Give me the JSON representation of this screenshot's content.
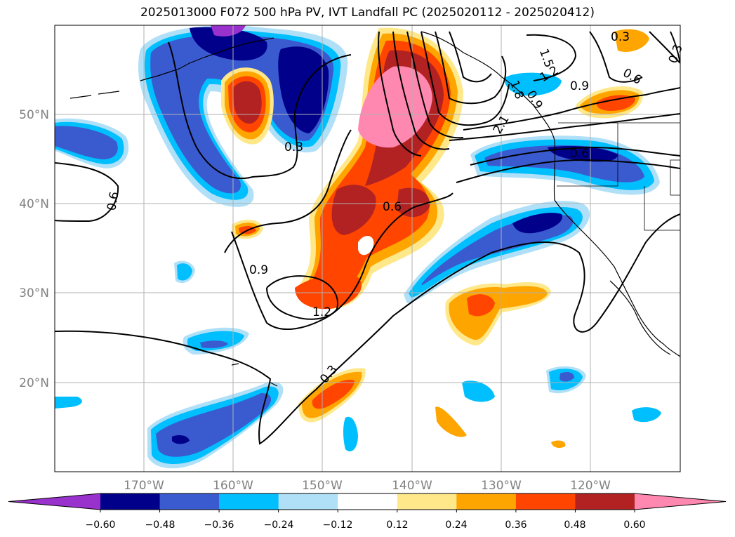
{
  "title": "2025013000 F072 500 hPa PV, IVT Landfall PC (2025020112 - 2025020412)",
  "map": {
    "lat_labels": [
      "50°N",
      "40°N",
      "30°N",
      "20°N"
    ],
    "lon_labels": [
      "170°W",
      "160°W",
      "150°W",
      "140°W",
      "130°W",
      "120°W"
    ],
    "contour_labels": [
      "0.3",
      "0.6",
      "0.9",
      "1.2",
      "1.5",
      "1.8",
      "2.1",
      "0.3",
      "0.6",
      "0.9",
      "0.6",
      "0.3",
      "0.6",
      "0.9",
      "1.2",
      "0.3"
    ]
  },
  "colorbar": {
    "ticks": [
      "−0.60",
      "−0.48",
      "−0.36",
      "−0.24",
      "−0.12",
      "0.12",
      "0.24",
      "0.36",
      "0.48",
      "0.60"
    ],
    "colors": [
      "#9932cc",
      "#00008b",
      "#3a5bd0",
      "#00bfff",
      "#b0e0f8",
      "#ffffff",
      "#ffe88a",
      "#ffa500",
      "#ff4500",
      "#b22222",
      "#ff88b0"
    ]
  }
}
